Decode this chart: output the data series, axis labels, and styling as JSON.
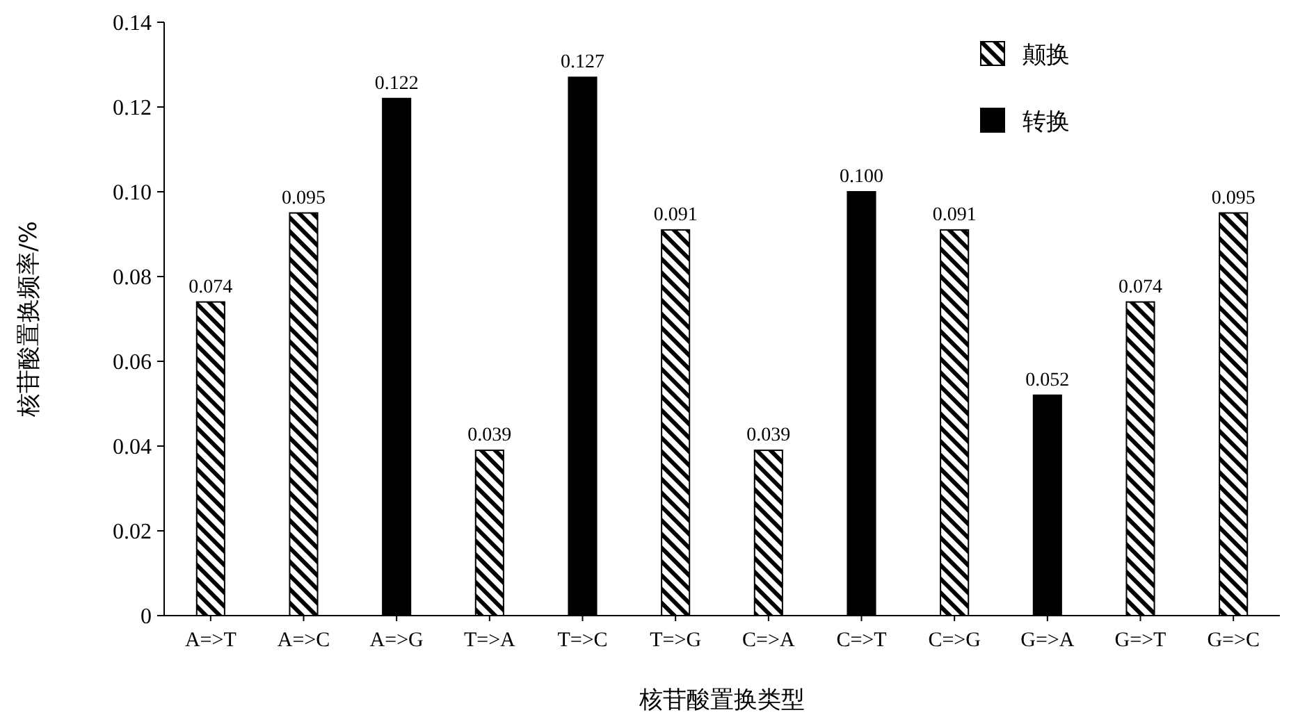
{
  "chart_data": {
    "type": "bar",
    "xlabel": "核苷酸置换类型",
    "ylabel": "核苷酸置换频率/%",
    "categories": [
      "A=>T",
      "A=>C",
      "A=>G",
      "T=>A",
      "T=>C",
      "T=>G",
      "C=>A",
      "C=>T",
      "C=>G",
      "G=>A",
      "G=>T",
      "G=>C"
    ],
    "series": [
      {
        "name": "颠换",
        "color": "#000000",
        "values": [
          0.074,
          0.095,
          null,
          0.039,
          null,
          0.091,
          0.039,
          null,
          0.091,
          null,
          0.074,
          0.095
        ],
        "value_labels": [
          "0.074",
          "0.095",
          null,
          "0.039",
          null,
          "0.091",
          "0.039",
          null,
          "0.091",
          null,
          "0.074",
          "0.095"
        ]
      },
      {
        "name": "转换",
        "color": "#000000",
        "values": [
          null,
          null,
          0.122,
          null,
          0.127,
          null,
          null,
          0.1,
          null,
          0.052,
          null,
          null
        ],
        "value_labels": [
          null,
          null,
          "0.122",
          null,
          "0.127",
          null,
          null,
          "0.100",
          null,
          "0.052",
          null,
          null
        ]
      }
    ],
    "ylim": [
      0,
      0.14
    ],
    "yticks": [
      0,
      0.02,
      0.04,
      0.06,
      0.08,
      {
        "value": 0.1,
        "label": "0.10"
      },
      0.12,
      0.14
    ],
    "legend": "top right"
  }
}
